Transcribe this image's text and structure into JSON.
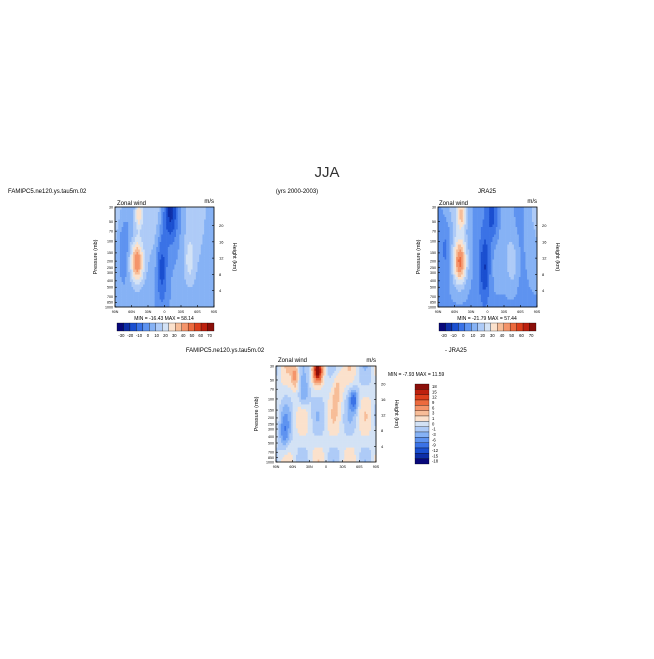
{
  "page": {
    "title": "JJA",
    "years": "(yrs 2000-2003)"
  },
  "chart_data": [
    {
      "type": "heatmap",
      "case": "FAMIPC5.ne120.ys.tau5m.02",
      "variable": "Zonal wind",
      "units": "m/s",
      "ylabel": "Pressure (mb)",
      "ylabel_right": "Height (km)",
      "x_ticks": [
        "90N",
        "60N",
        "30N",
        "0",
        "30S",
        "60S",
        "90S"
      ],
      "y_ticks": [
        "30",
        "50",
        "70",
        "100",
        "150",
        "200",
        "250",
        "300",
        "400",
        "500",
        "700",
        "850",
        "1000"
      ],
      "y_ticks_right": [
        "20",
        "16",
        "12",
        "8",
        "4"
      ],
      "stats": "MIN = -16.43   MAX = 58.14",
      "colorbar_labels": [
        "-30",
        "-20",
        "-10",
        "0",
        "10",
        "20",
        "30",
        "40",
        "50",
        "60",
        "70"
      ],
      "features": [
        {
          "lat": 45,
          "p": 200,
          "u": 55
        },
        {
          "lat": 50,
          "p": 40,
          "u": 40
        },
        {
          "lat": -40,
          "p": 250,
          "u": -10
        },
        {
          "lat": -15,
          "p": 30,
          "u": -16
        }
      ]
    },
    {
      "type": "heatmap",
      "case": "JRA25",
      "variable": "Zonal wind",
      "units": "m/s",
      "ylabel": "Pressure (mb)",
      "ylabel_right": "Height (km)",
      "x_ticks": [
        "90N",
        "60N",
        "30N",
        "0",
        "30S",
        "60S",
        "90S"
      ],
      "y_ticks": [
        "30",
        "50",
        "70",
        "100",
        "150",
        "200",
        "250",
        "300",
        "400",
        "500",
        "700",
        "850",
        "1000"
      ],
      "y_ticks_right": [
        "20",
        "16",
        "12",
        "8",
        "4"
      ],
      "stats": "MIN = -21.79   MAX = 57.44",
      "colorbar_labels": [
        "-20",
        "-10",
        "0",
        "10",
        "20",
        "30",
        "40",
        "50",
        "60",
        "70"
      ],
      "features": [
        {
          "lat": 45,
          "p": 200,
          "u": 52
        },
        {
          "lat": 50,
          "p": 35,
          "u": 45
        },
        {
          "lat": -40,
          "p": 250,
          "u": -10
        },
        {
          "lat": -15,
          "p": 30,
          "u": -20
        }
      ]
    },
    {
      "type": "heatmap",
      "case": "FAMIPC5.ne120.ys.tau5m.02",
      "subtitle": "- JRA25",
      "variable": "Zonal wind",
      "units": "m/s",
      "ylabel": "Pressure (mb)",
      "ylabel_right": "Height (km)",
      "x_ticks": [
        "90N",
        "60N",
        "30N",
        "0",
        "30S",
        "60S",
        "90S"
      ],
      "y_ticks": [
        "30",
        "50",
        "70",
        "100",
        "150",
        "200",
        "250",
        "300",
        "400",
        "500",
        "700",
        "850",
        "1000"
      ],
      "y_ticks_right": [
        "20",
        "16",
        "12",
        "8",
        "4"
      ],
      "stats": "MIN = -7.93   MAX = 11.59",
      "colorbar_labels": [
        "18",
        "15",
        "12",
        "9",
        "6",
        "3",
        "1",
        "0",
        "-1",
        "-3",
        "-6",
        "-9",
        "-12",
        "-15",
        "-18"
      ],
      "features": [
        {
          "lat": 10,
          "p": 40,
          "u": 11
        },
        {
          "lat": -50,
          "p": 150,
          "u": -7
        },
        {
          "lat": 40,
          "p": 300,
          "u": 4
        }
      ]
    }
  ]
}
